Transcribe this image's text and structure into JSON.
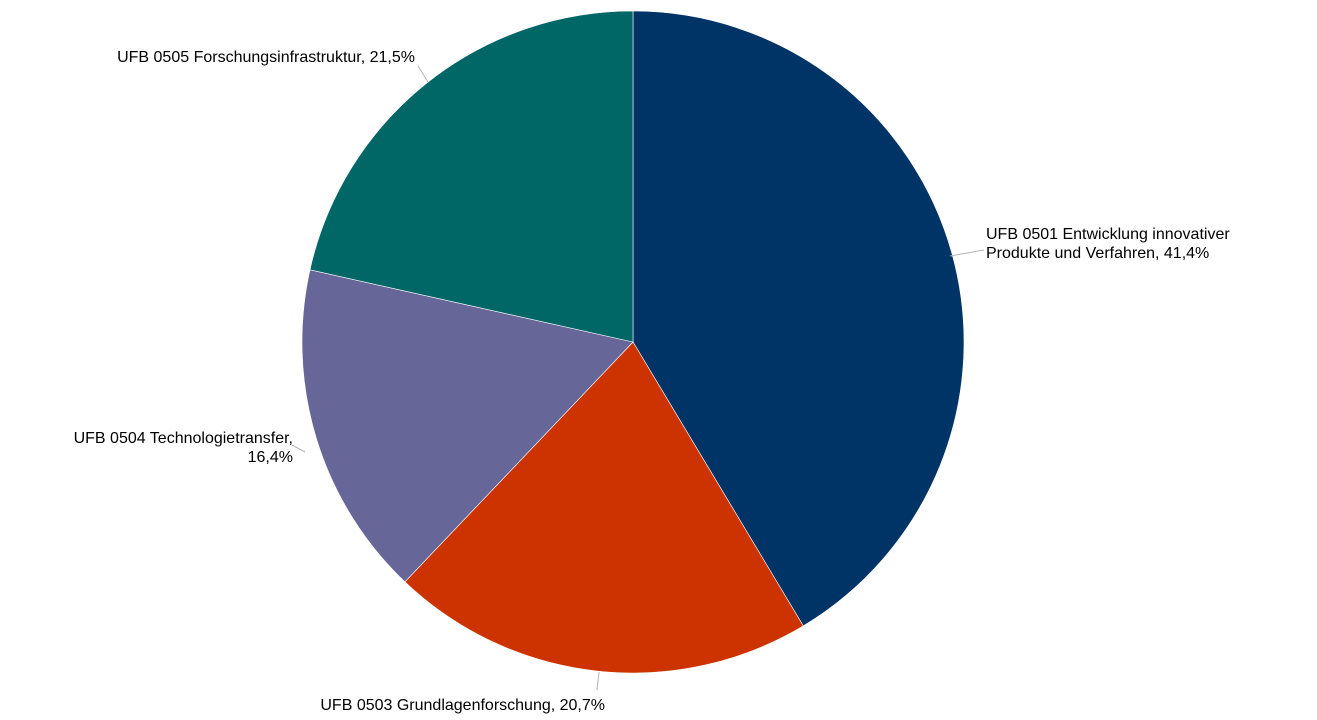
{
  "chart_data": {
    "type": "pie",
    "title": "",
    "start_angle_deg": 0,
    "direction": "clockwise",
    "slices": [
      {
        "code": "UFB 0501",
        "name": "Entwicklung innovativer Produkte und Verfahren",
        "value": 41.4,
        "label_lines": [
          "UFB 0501 Entwicklung innovativer",
          "Produkte und Verfahren, 41,4%"
        ],
        "color": "#003366"
      },
      {
        "code": "UFB 0503",
        "name": "Grundlagenforschung",
        "value": 20.7,
        "label_lines": [
          "UFB 0503 Grundlagenforschung, 20,7%"
        ],
        "color": "#cc3300"
      },
      {
        "code": "UFB 0504",
        "name": "Technologietransfer",
        "value": 16.4,
        "label_lines": [
          "UFB 0504 Technologietransfer,",
          "16,4%"
        ],
        "color": "#666699"
      },
      {
        "code": "UFB 0505",
        "name": "Forschungsinfrastruktur",
        "value": 21.5,
        "label_lines": [
          "UFB 0505 Forschungsinfrastruktur, 21,5%"
        ],
        "color": "#006666"
      }
    ]
  }
}
